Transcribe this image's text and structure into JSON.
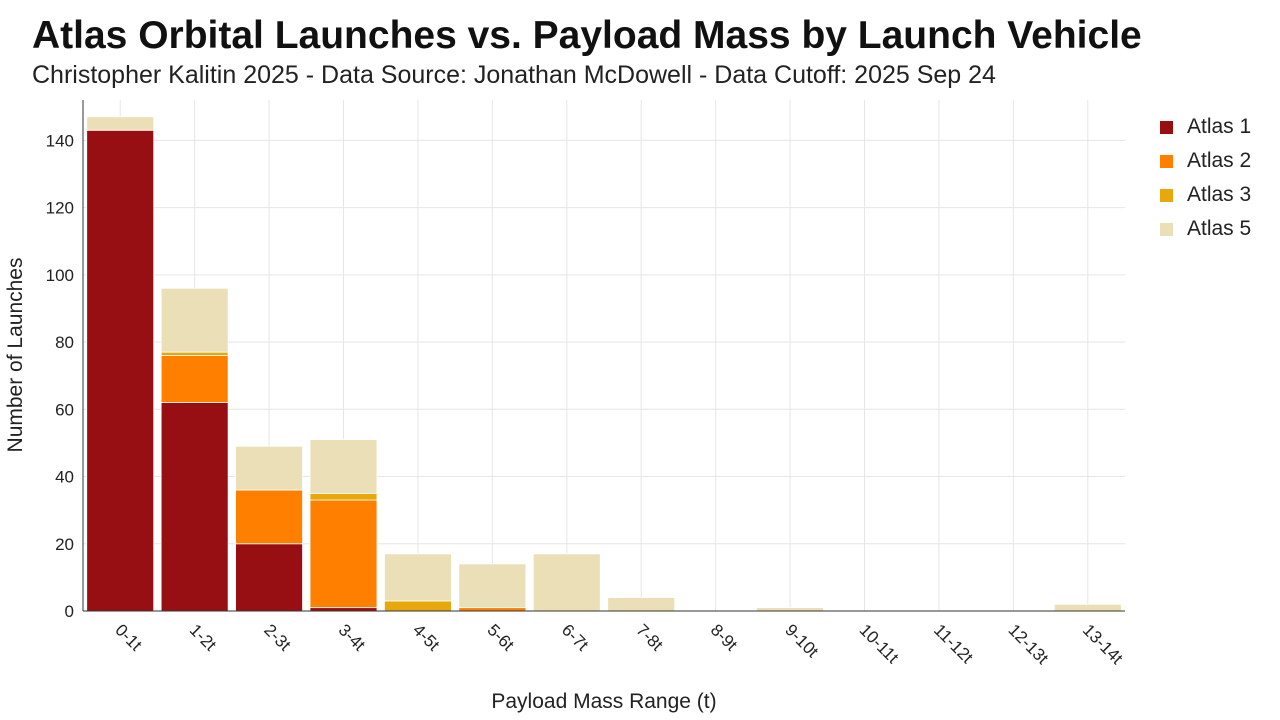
{
  "chart_data": {
    "type": "bar",
    "stacked": true,
    "title": "Atlas Orbital Launches vs. Payload Mass by Launch Vehicle",
    "subtitle": "Christopher Kalitin 2025 - Data Source: Jonathan McDowell - Data Cutoff: 2025 Sep 24",
    "xlabel": "Payload Mass Range (t)",
    "ylabel": "Number of Launches",
    "ylim": [
      0,
      152
    ],
    "yticks": [
      0,
      20,
      40,
      60,
      80,
      100,
      120,
      140
    ],
    "grid": true,
    "legend_position": "top-right",
    "categories": [
      "0-1t",
      "1-2t",
      "2-3t",
      "3-4t",
      "4-5t",
      "5-6t",
      "6-7t",
      "7-8t",
      "8-9t",
      "9-10t",
      "10-11t",
      "11-12t",
      "12-13t",
      "13-14t"
    ],
    "series": [
      {
        "name": "Atlas 1",
        "color": "#970f13",
        "values": [
          143,
          62,
          20,
          1,
          0,
          0,
          0,
          0,
          0,
          0,
          0,
          0,
          0,
          0
        ]
      },
      {
        "name": "Atlas 2",
        "color": "#ff8000",
        "values": [
          0,
          14,
          16,
          32,
          0,
          1,
          0,
          0,
          0,
          0,
          0,
          0,
          0,
          0
        ]
      },
      {
        "name": "Atlas 3",
        "color": "#e8a80b",
        "values": [
          0,
          1,
          0,
          2,
          3,
          0,
          0,
          0,
          0,
          0,
          0,
          0,
          0,
          0
        ]
      },
      {
        "name": "Atlas 5",
        "color": "#ebdfb8",
        "values": [
          4,
          19,
          13,
          16,
          14,
          13,
          17,
          4,
          0,
          1,
          0,
          0,
          0,
          2
        ]
      }
    ]
  }
}
